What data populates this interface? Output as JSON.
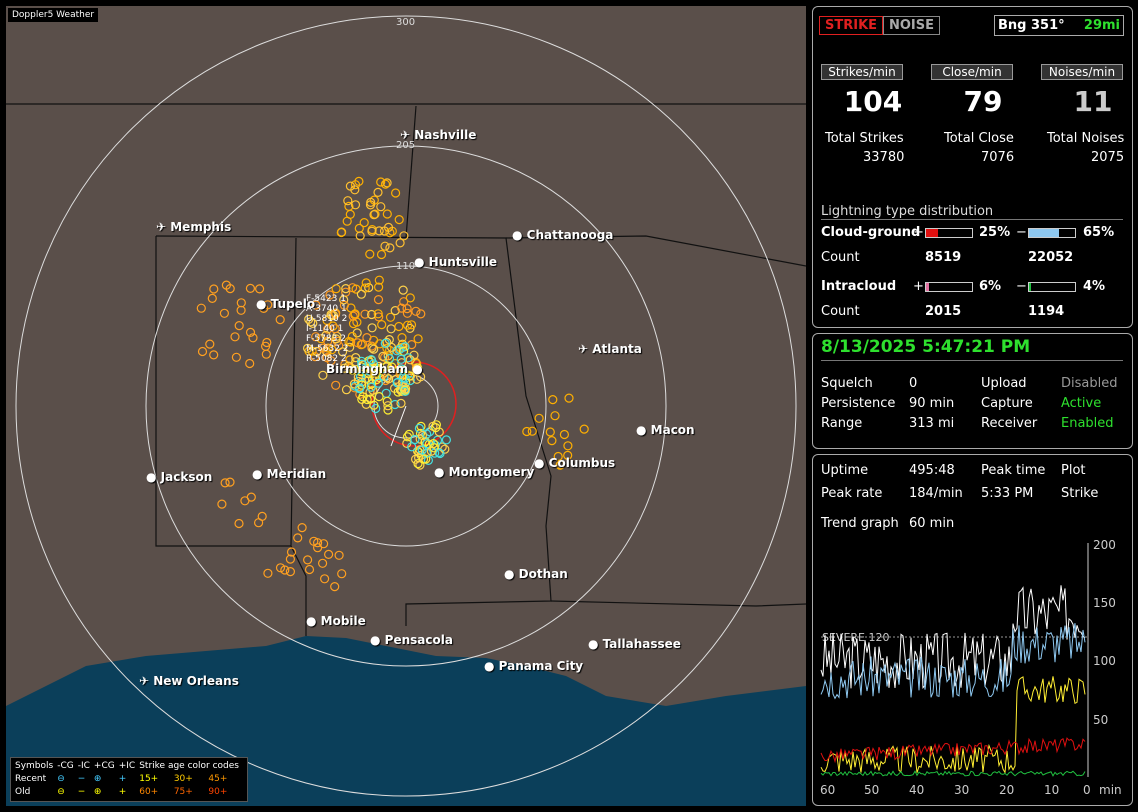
{
  "map": {
    "title": "Doppler5 Weather",
    "ring_labels": [
      "300",
      "205",
      "110"
    ],
    "cities": [
      "Nashville",
      "Memphis",
      "Chattanooga",
      "Huntsville",
      "Tupelo",
      "Birmingham",
      "Atlanta",
      "Macon",
      "Jackson",
      "Meridian",
      "Montgomery",
      "Columbus",
      "Dothan",
      "Mobile",
      "Pensacola",
      "Tallahassee",
      "Panama City",
      "New Orleans"
    ],
    "storm_labels": [
      "F-5423 1",
      "A-3740 1",
      "U-5810 2",
      "I-1140 1",
      "F-5783 2",
      "M-5632 2",
      "R-5082 2"
    ]
  },
  "legend": {
    "header": [
      "Symbols",
      "-CG",
      "-IC",
      "+CG",
      "+IC",
      "Strike age color codes"
    ],
    "recent": [
      "Recent",
      "⊖",
      "−",
      "⊕",
      "+",
      "15+",
      "30+",
      "45+"
    ],
    "old": [
      "Old",
      "⊖",
      "−",
      "⊕",
      "+",
      "60+",
      "75+",
      "90+"
    ]
  },
  "top": {
    "strike": "STRIKE",
    "noise": "NOISE",
    "bearing": "Bng 351°",
    "distance": "29mi",
    "strikes_per_min_label": "Strikes/min",
    "close_per_min_label": "Close/min",
    "noises_per_min_label": "Noises/min",
    "strikes_per_min": "104",
    "close_per_min": "79",
    "noises_per_min": "11",
    "total_strikes_label": "Total Strikes",
    "total_close_label": "Total Close",
    "total_noises_label": "Total Noises",
    "total_strikes": "33780",
    "total_close": "7076",
    "total_noises": "2075",
    "dist_title": "Lightning type distribution",
    "cg_label": "Cloud-ground",
    "cg_plus_pct": "25%",
    "cg_minus_pct": "65%",
    "count_label": "Count",
    "cg_plus_count": "8519",
    "cg_minus_count": "22052",
    "ic_label": "Intracloud",
    "ic_plus_pct": "6%",
    "ic_minus_pct": "4%",
    "ic_plus_count": "2015",
    "ic_minus_count": "1194",
    "plus": "+",
    "minus": "−",
    "cg_plus_fill": 0.25,
    "cg_minus_fill": 0.65,
    "ic_plus_fill": 0.06,
    "ic_minus_fill": 0.04
  },
  "status": {
    "datetime": "8/13/2025 5:47:21 PM",
    "squelch_label": "Squelch",
    "squelch": "0",
    "upload_label": "Upload",
    "upload": "Disabled",
    "persistence_label": "Persistence",
    "persistence": "90 min",
    "capture_label": "Capture",
    "capture": "Active",
    "range_label": "Range",
    "range": "313 mi",
    "receiver_label": "Receiver",
    "receiver": "Enabled"
  },
  "trend": {
    "uptime_label": "Uptime",
    "uptime": "495:48",
    "peak_time_label": "Peak time",
    "peak_time": "5:33 PM",
    "plot_label": "Plot",
    "peak_rate_label": "Peak rate",
    "peak_rate": "184/min",
    "plot": "Strike",
    "trend_graph_label": "Trend graph",
    "trend_graph": "60 min",
    "severe_label": "SEVERE 120",
    "y_ticks": [
      "200",
      "150",
      "100",
      "50"
    ],
    "x_ticks": [
      "60",
      "50",
      "40",
      "30",
      "20",
      "10",
      "0",
      "min"
    ]
  },
  "colors": {
    "strike_red": "#e02020",
    "green": "#2ee02e",
    "cg_plus": "#e01010",
    "cg_minus": "#8ec8f0",
    "ic_plus": "#e070a0",
    "ic_minus": "#20c040",
    "land": "#5a4f4a",
    "water": "#0b3f5a"
  }
}
